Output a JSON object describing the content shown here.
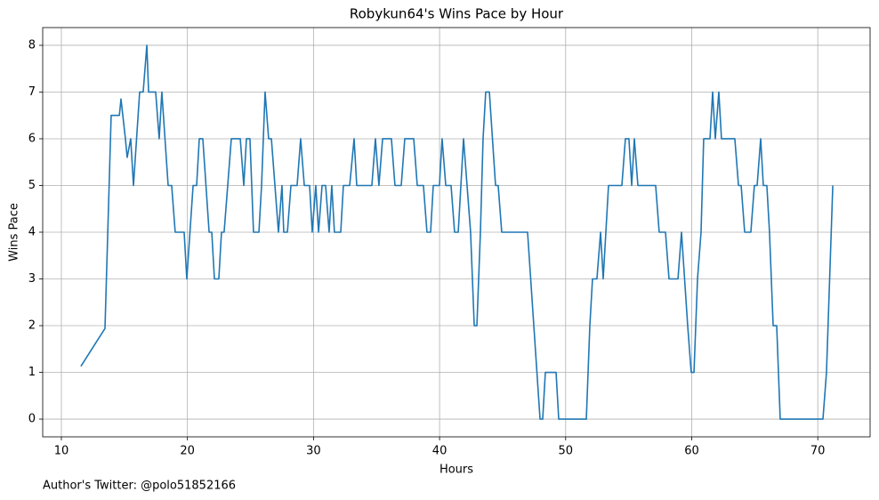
{
  "chart_data": {
    "type": "line",
    "title": "Robykun64's Wins Pace by Hour",
    "xlabel": "Hours",
    "ylabel": "Wins Pace",
    "annotation": "Author's Twitter: @polo51852166",
    "color": "#1f77b4",
    "grid": true,
    "xlim": [
      8.52,
      74.15
    ],
    "ylim": [
      -0.38,
      8.38
    ],
    "xticks": [
      10,
      20,
      30,
      40,
      50,
      60,
      70
    ],
    "yticks": [
      0,
      1,
      2,
      3,
      4,
      5,
      6,
      7,
      8
    ],
    "x": [
      11.55,
      13.46,
      13.95,
      14.38,
      14.6,
      14.73,
      15.08,
      15.22,
      15.5,
      15.72,
      16.21,
      16.49,
      16.78,
      16.92,
      17.48,
      17.76,
      17.97,
      18.47,
      18.75,
      19.03,
      19.74,
      19.95,
      20.45,
      20.73,
      20.94,
      21.22,
      21.72,
      21.93,
      22.14,
      22.49,
      22.7,
      22.91,
      23.48,
      24.19,
      24.47,
      24.68,
      24.96,
      25.24,
      25.67,
      25.88,
      26.16,
      26.44,
      26.66,
      27.22,
      27.5,
      27.64,
      27.93,
      28.21,
      28.7,
      28.98,
      29.27,
      29.69,
      29.9,
      30.18,
      30.4,
      30.68,
      30.96,
      31.24,
      31.45,
      31.66,
      32.16,
      32.37,
      32.87,
      33.22,
      33.43,
      34.63,
      34.91,
      35.19,
      35.48,
      36.18,
      36.46,
      36.96,
      37.24,
      37.95,
      38.23,
      38.72,
      39.0,
      39.29,
      39.5,
      39.99,
      40.2,
      40.49,
      40.91,
      41.19,
      41.48,
      41.9,
      42.18,
      42.46,
      42.75,
      42.96,
      43.24,
      43.45,
      43.66,
      43.95,
      44.44,
      44.65,
      44.93,
      46.98,
      47.97,
      48.18,
      48.39,
      49.24,
      49.45,
      51.64,
      51.92,
      52.13,
      52.48,
      52.77,
      52.98,
      53.4,
      54.46,
      54.74,
      55.02,
      55.24,
      55.45,
      55.73,
      57.14,
      57.42,
      57.92,
      58.2,
      58.91,
      59.19,
      59.68,
      59.96,
      60.18,
      60.46,
      60.74,
      60.95,
      61.45,
      61.66,
      61.87,
      62.15,
      62.36,
      63.42,
      63.71,
      63.92,
      64.2,
      64.69,
      64.97,
      65.19,
      65.47,
      65.68,
      65.96,
      66.17,
      66.46,
      66.74,
      67.02,
      70.41,
      70.69,
      71.19
    ],
    "y": [
      1.13,
      1.94,
      6.5,
      6.5,
      6.5,
      6.85,
      6.0,
      5.6,
      6.0,
      5.0,
      7.0,
      7.0,
      8.0,
      7.0,
      7.0,
      6.0,
      7.0,
      5.0,
      5.0,
      4.0,
      4.0,
      3.0,
      5.0,
      5.0,
      6.0,
      6.0,
      4.0,
      4.0,
      3.0,
      3.0,
      4.0,
      4.0,
      6.0,
      6.0,
      5.0,
      6.0,
      6.0,
      4.0,
      4.0,
      5.0,
      7.0,
      6.0,
      6.0,
      4.0,
      5.0,
      4.0,
      4.0,
      5.0,
      5.0,
      6.0,
      5.0,
      5.0,
      4.0,
      5.0,
      4.0,
      5.0,
      5.0,
      4.0,
      5.0,
      4.0,
      4.0,
      5.0,
      5.0,
      6.0,
      5.0,
      5.0,
      6.0,
      5.0,
      6.0,
      6.0,
      5.0,
      5.0,
      6.0,
      6.0,
      5.0,
      5.0,
      4.0,
      4.0,
      5.0,
      5.0,
      6.0,
      5.0,
      5.0,
      4.0,
      4.0,
      6.0,
      5.0,
      4.0,
      2.0,
      2.0,
      4.0,
      6.0,
      7.0,
      7.0,
      5.0,
      5.0,
      4.0,
      4.0,
      0.0,
      0.0,
      1.0,
      1.0,
      0.0,
      0.0,
      2.0,
      3.0,
      3.0,
      4.0,
      3.0,
      5.0,
      5.0,
      6.0,
      6.0,
      5.0,
      6.0,
      5.0,
      5.0,
      4.0,
      4.0,
      3.0,
      3.0,
      4.0,
      2.0,
      1.0,
      1.0,
      3.0,
      4.0,
      6.0,
      6.0,
      7.0,
      6.0,
      7.0,
      6.0,
      6.0,
      5.0,
      5.0,
      4.0,
      4.0,
      5.0,
      5.0,
      6.0,
      5.0,
      5.0,
      4.0,
      2.0,
      2.0,
      0.0,
      0.0,
      1.0,
      5.0
    ]
  }
}
